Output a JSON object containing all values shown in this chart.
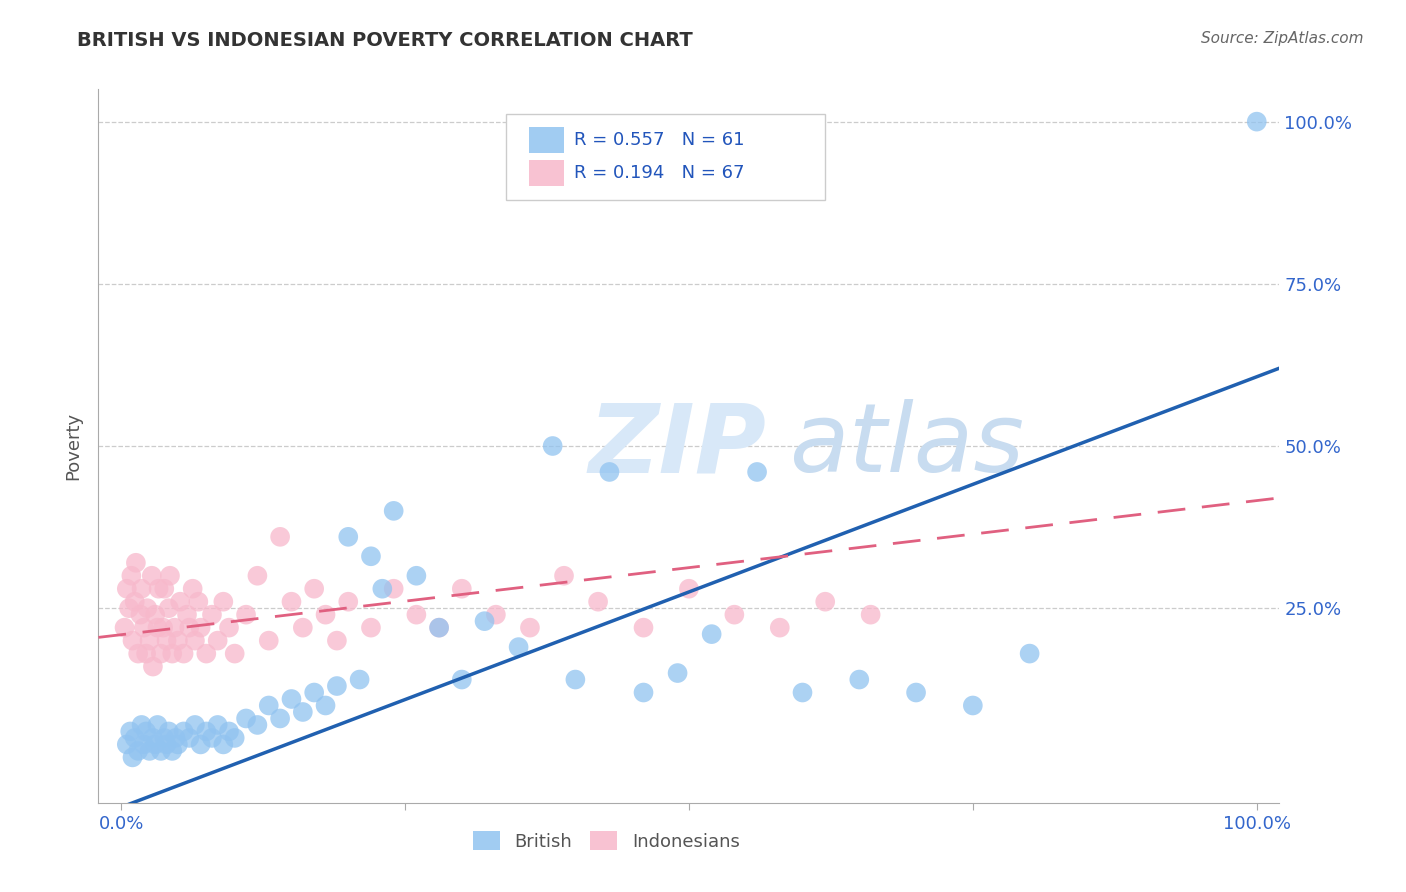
{
  "title": "BRITISH VS INDONESIAN POVERTY CORRELATION CHART",
  "source": "Source: ZipAtlas.com",
  "ylabel": "Poverty",
  "xlim": [
    -0.02,
    1.02
  ],
  "ylim": [
    -0.05,
    1.05
  ],
  "british_R": 0.557,
  "british_N": 61,
  "indonesian_R": 0.194,
  "indonesian_N": 67,
  "british_color": "#91C3F0",
  "indonesian_color": "#F7B8CB",
  "british_line_color": "#2060B0",
  "indonesian_line_color": "#E06080",
  "watermark_zip": "ZIP",
  "watermark_atlas": "atlas",
  "watermark_color": "#D8E8F8",
  "brit_line_x0": -0.02,
  "brit_line_y0": -0.07,
  "brit_line_x1": 1.02,
  "brit_line_y1": 0.62,
  "indo_line_x0": -0.02,
  "indo_line_y0": 0.205,
  "indo_line_x1": 1.02,
  "indo_line_y1": 0.42,
  "brit_scatter_x": [
    0.005,
    0.008,
    0.01,
    0.012,
    0.015,
    0.018,
    0.02,
    0.022,
    0.025,
    0.028,
    0.03,
    0.032,
    0.035,
    0.038,
    0.04,
    0.042,
    0.045,
    0.048,
    0.05,
    0.055,
    0.06,
    0.065,
    0.07,
    0.075,
    0.08,
    0.085,
    0.09,
    0.095,
    0.1,
    0.11,
    0.12,
    0.13,
    0.14,
    0.15,
    0.16,
    0.17,
    0.18,
    0.19,
    0.2,
    0.21,
    0.22,
    0.23,
    0.24,
    0.26,
    0.28,
    0.3,
    0.32,
    0.35,
    0.38,
    0.4,
    0.43,
    0.46,
    0.49,
    0.52,
    0.56,
    0.6,
    0.65,
    0.7,
    0.75,
    0.8,
    1.0
  ],
  "brit_scatter_y": [
    0.04,
    0.06,
    0.02,
    0.05,
    0.03,
    0.07,
    0.04,
    0.06,
    0.03,
    0.05,
    0.04,
    0.07,
    0.03,
    0.05,
    0.04,
    0.06,
    0.03,
    0.05,
    0.04,
    0.06,
    0.05,
    0.07,
    0.04,
    0.06,
    0.05,
    0.07,
    0.04,
    0.06,
    0.05,
    0.08,
    0.07,
    0.1,
    0.08,
    0.11,
    0.09,
    0.12,
    0.1,
    0.13,
    0.36,
    0.14,
    0.33,
    0.28,
    0.4,
    0.3,
    0.22,
    0.14,
    0.23,
    0.19,
    0.5,
    0.14,
    0.46,
    0.12,
    0.15,
    0.21,
    0.46,
    0.12,
    0.14,
    0.12,
    0.1,
    0.18,
    1.0
  ],
  "indo_scatter_x": [
    0.003,
    0.005,
    0.007,
    0.009,
    0.01,
    0.012,
    0.013,
    0.015,
    0.017,
    0.018,
    0.02,
    0.022,
    0.023,
    0.025,
    0.027,
    0.028,
    0.03,
    0.032,
    0.033,
    0.035,
    0.037,
    0.038,
    0.04,
    0.042,
    0.043,
    0.045,
    0.047,
    0.05,
    0.052,
    0.055,
    0.058,
    0.06,
    0.063,
    0.065,
    0.068,
    0.07,
    0.075,
    0.08,
    0.085,
    0.09,
    0.095,
    0.1,
    0.11,
    0.12,
    0.13,
    0.14,
    0.15,
    0.16,
    0.17,
    0.18,
    0.19,
    0.2,
    0.22,
    0.24,
    0.26,
    0.28,
    0.3,
    0.33,
    0.36,
    0.39,
    0.42,
    0.46,
    0.5,
    0.54,
    0.58,
    0.62,
    0.66
  ],
  "indo_scatter_y": [
    0.22,
    0.28,
    0.25,
    0.3,
    0.2,
    0.26,
    0.32,
    0.18,
    0.24,
    0.28,
    0.22,
    0.18,
    0.25,
    0.2,
    0.3,
    0.16,
    0.24,
    0.22,
    0.28,
    0.18,
    0.22,
    0.28,
    0.2,
    0.25,
    0.3,
    0.18,
    0.22,
    0.2,
    0.26,
    0.18,
    0.24,
    0.22,
    0.28,
    0.2,
    0.26,
    0.22,
    0.18,
    0.24,
    0.2,
    0.26,
    0.22,
    0.18,
    0.24,
    0.3,
    0.2,
    0.36,
    0.26,
    0.22,
    0.28,
    0.24,
    0.2,
    0.26,
    0.22,
    0.28,
    0.24,
    0.22,
    0.28,
    0.24,
    0.22,
    0.3,
    0.26,
    0.22,
    0.28,
    0.24,
    0.22,
    0.26,
    0.24
  ]
}
